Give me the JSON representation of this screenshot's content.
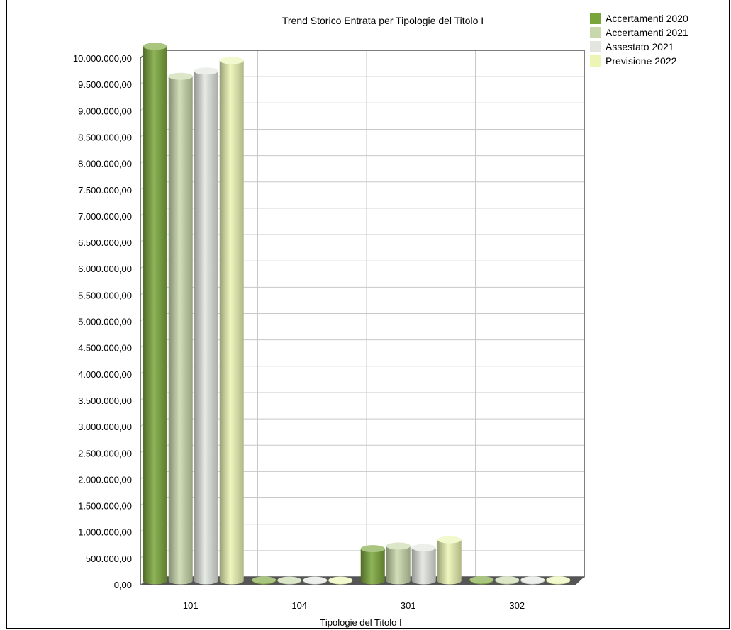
{
  "chart_data": {
    "type": "bar",
    "title": "Trend Storico Entrata per Tipologie del Titolo I",
    "xlabel": "Tipologie del Titolo I",
    "ylabel": "",
    "categories": [
      "101",
      "104",
      "301",
      "302"
    ],
    "series": [
      {
        "name": "Accertamenti 2020",
        "values": [
          10150000,
          15000,
          610000,
          20000
        ],
        "color": "#7aa53a"
      },
      {
        "name": "Accertamenti 2021",
        "values": [
          9580000,
          12000,
          660000,
          18000
        ],
        "color": "#c9d8ac"
      },
      {
        "name": "Assestato 2021",
        "values": [
          9680000,
          12000,
          630000,
          17000
        ],
        "color": "#e2e6df"
      },
      {
        "name": "Previsione 2022",
        "values": [
          9880000,
          12000,
          780000,
          18000
        ],
        "color": "#ecf5b4"
      }
    ],
    "ylim": [
      0,
      10000000
    ],
    "yticks": [
      "0,00",
      "500.000,00",
      "1.000.000,00",
      "1.500.000,00",
      "2.000.000,00",
      "2.500.000,00",
      "3.000.000,00",
      "3.500.000,00",
      "4.000.000,00",
      "4.500.000,00",
      "5.000.000,00",
      "5.500.000,00",
      "6.000.000,00",
      "6.500.000,00",
      "7.000.000,00",
      "7.500.000,00",
      "8.000.000,00",
      "8.500.000,00",
      "9.000.000,00",
      "9.500.000,00",
      "10.000.000,00"
    ],
    "grid": true,
    "legend_position": "top-right"
  }
}
